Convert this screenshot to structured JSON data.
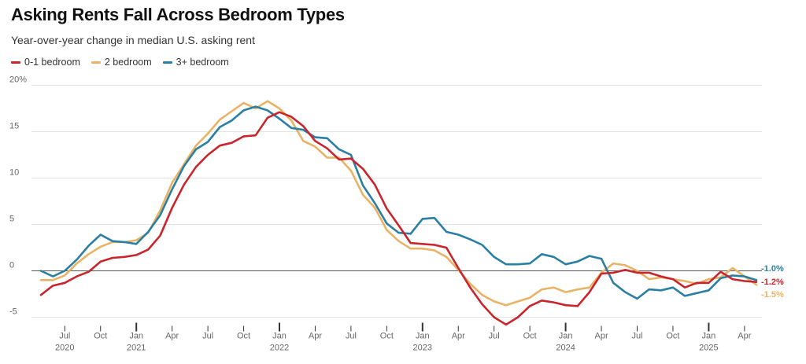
{
  "title": "Asking Rents Fall Across Bedroom Types",
  "subtitle": "Year-over-year change in median U.S. asking rent",
  "chart_data": {
    "type": "line",
    "title": "Asking Rents Fall Across Bedroom Types",
    "subtitle": "Year-over-year change in median U.S. asking rent",
    "xlabel": "",
    "ylabel": "",
    "ylim": [
      -6,
      20
    ],
    "yticks": [
      -5,
      0,
      5,
      10,
      15,
      20
    ],
    "ytick_labels": [
      "-5",
      "0",
      "5",
      "10",
      "15",
      "20%"
    ],
    "grid": true,
    "legend_position": "top-left",
    "x": [
      "2020-05",
      "2020-06",
      "2020-07",
      "2020-08",
      "2020-09",
      "2020-10",
      "2020-11",
      "2020-12",
      "2021-01",
      "2021-02",
      "2021-03",
      "2021-04",
      "2021-05",
      "2021-06",
      "2021-07",
      "2021-08",
      "2021-09",
      "2021-10",
      "2021-11",
      "2021-12",
      "2022-01",
      "2022-02",
      "2022-03",
      "2022-04",
      "2022-05",
      "2022-06",
      "2022-07",
      "2022-08",
      "2022-09",
      "2022-10",
      "2022-11",
      "2022-12",
      "2023-01",
      "2023-02",
      "2023-03",
      "2023-04",
      "2023-05",
      "2023-06",
      "2023-07",
      "2023-08",
      "2023-09",
      "2023-10",
      "2023-11",
      "2023-12",
      "2024-01",
      "2024-02",
      "2024-03",
      "2024-04",
      "2024-05",
      "2024-06",
      "2024-07",
      "2024-08",
      "2024-09",
      "2024-10",
      "2024-11",
      "2024-12",
      "2025-01",
      "2025-02",
      "2025-03",
      "2025-04",
      "2025-05"
    ],
    "x_ticks": [
      {
        "month": "2020-07",
        "label": "Jul",
        "year": "2020"
      },
      {
        "month": "2020-10",
        "label": "Oct",
        "year": ""
      },
      {
        "month": "2021-01",
        "label": "Jan",
        "year": "2021"
      },
      {
        "month": "2021-04",
        "label": "Apr",
        "year": ""
      },
      {
        "month": "2021-07",
        "label": "Jul",
        "year": ""
      },
      {
        "month": "2021-10",
        "label": "Oct",
        "year": ""
      },
      {
        "month": "2022-01",
        "label": "Jan",
        "year": "2022"
      },
      {
        "month": "2022-04",
        "label": "Apr",
        "year": ""
      },
      {
        "month": "2022-07",
        "label": "Jul",
        "year": ""
      },
      {
        "month": "2022-10",
        "label": "Oct",
        "year": ""
      },
      {
        "month": "2023-01",
        "label": "Jan",
        "year": "2023"
      },
      {
        "month": "2023-04",
        "label": "Apr",
        "year": ""
      },
      {
        "month": "2023-07",
        "label": "Jul",
        "year": ""
      },
      {
        "month": "2023-10",
        "label": "Oct",
        "year": ""
      },
      {
        "month": "2024-01",
        "label": "Jan",
        "year": "2024"
      },
      {
        "month": "2024-04",
        "label": "Apr",
        "year": ""
      },
      {
        "month": "2024-07",
        "label": "Jul",
        "year": ""
      },
      {
        "month": "2024-10",
        "label": "Oct",
        "year": ""
      },
      {
        "month": "2025-01",
        "label": "Jan",
        "year": "2025"
      },
      {
        "month": "2025-04",
        "label": "Apr",
        "year": ""
      }
    ],
    "series": [
      {
        "name": "0-1 bedroom",
        "color": "#c8262c",
        "end_label": "-1.2%",
        "values": [
          -2.6,
          -1.6,
          -1.3,
          -0.6,
          -0.1,
          1.0,
          1.4,
          1.5,
          1.7,
          2.3,
          3.8,
          6.8,
          9.3,
          11.2,
          12.5,
          13.5,
          13.8,
          14.5,
          14.6,
          16.5,
          17.1,
          16.6,
          15.6,
          14.0,
          13.2,
          12.0,
          12.1,
          11.0,
          9.3,
          6.7,
          4.9,
          3.0,
          2.9,
          2.8,
          2.5,
          0.3,
          -1.8,
          -3.6,
          -5.0,
          -5.8,
          -5.0,
          -3.8,
          -3.2,
          -3.4,
          -3.7,
          -3.8,
          -2.3,
          -0.3,
          -0.2,
          0.1,
          -0.2,
          -0.2,
          -0.6,
          -0.9,
          -1.8,
          -1.3,
          -1.3,
          -0.1,
          -0.9,
          -1.1,
          -1.2
        ]
      },
      {
        "name": "2 bedroom",
        "color": "#e8b365",
        "end_label": "-1.5%",
        "values": [
          -1.0,
          -1.0,
          -0.5,
          0.8,
          1.8,
          2.6,
          3.1,
          3.1,
          3.3,
          4.1,
          6.5,
          9.5,
          11.5,
          13.5,
          14.8,
          16.3,
          17.2,
          18.1,
          17.5,
          18.3,
          17.5,
          16.2,
          14.0,
          13.4,
          12.2,
          12.2,
          10.8,
          8.2,
          6.8,
          4.4,
          3.2,
          2.4,
          2.4,
          2.2,
          1.5,
          0.1,
          -1.4,
          -2.6,
          -3.3,
          -3.7,
          -3.3,
          -2.9,
          -2.0,
          -1.8,
          -2.3,
          -2.0,
          -1.8,
          -0.2,
          0.8,
          0.6,
          0.0,
          -0.9,
          -0.7,
          -0.9,
          -1.1,
          -1.4,
          -0.9,
          -0.7,
          0.3,
          -0.6,
          -1.5
        ]
      },
      {
        "name": "3+ bedroom",
        "color": "#2a7fa2",
        "end_label": "-1.0%",
        "values": [
          0.0,
          -0.6,
          0.0,
          1.2,
          2.7,
          3.9,
          3.2,
          3.1,
          2.9,
          4.2,
          6.0,
          8.8,
          11.3,
          13.1,
          13.9,
          15.5,
          16.2,
          17.3,
          17.7,
          17.3,
          16.4,
          15.4,
          15.2,
          14.4,
          14.3,
          13.1,
          12.5,
          9.2,
          7.3,
          5.1,
          4.1,
          4.0,
          5.6,
          5.7,
          4.2,
          3.9,
          3.4,
          2.8,
          1.5,
          0.7,
          0.7,
          0.8,
          1.8,
          1.5,
          0.7,
          1.0,
          1.6,
          1.3,
          -1.3,
          -2.3,
          -3.0,
          -2.0,
          -2.1,
          -1.8,
          -2.7,
          -2.4,
          -2.1,
          -0.8,
          -0.5,
          -0.6,
          -1.0
        ]
      }
    ]
  }
}
